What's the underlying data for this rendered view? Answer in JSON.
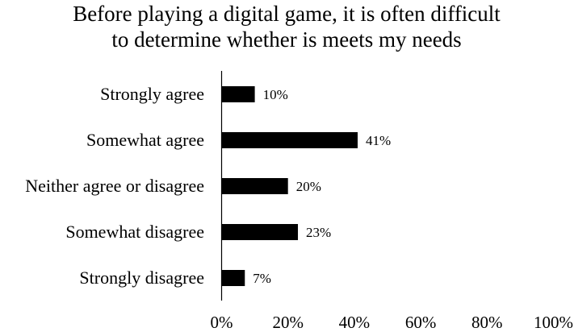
{
  "chart_data": {
    "type": "bar",
    "orientation": "horizontal",
    "title": "Before playing a digital game, it is often difficult to determine whether is meets my needs",
    "title_lines": [
      "Before playing a digital game, it is often difficult",
      "to determine whether is meets my needs"
    ],
    "categories": [
      "Strongly agree",
      "Somewhat agree",
      "Neither agree or disagree",
      "Somewhat disagree",
      "Strongly disagree"
    ],
    "values": [
      10,
      41,
      20,
      23,
      7
    ],
    "data_labels": [
      "10%",
      "41%",
      "20%",
      "23%",
      "7%"
    ],
    "xlim": [
      0,
      100
    ],
    "x_ticks": [
      0,
      20,
      40,
      60,
      80,
      100
    ],
    "x_tick_labels": [
      "0%",
      "20%",
      "40%",
      "60%",
      "80%",
      "100%"
    ],
    "grid": false,
    "bar_color": "#000000"
  }
}
